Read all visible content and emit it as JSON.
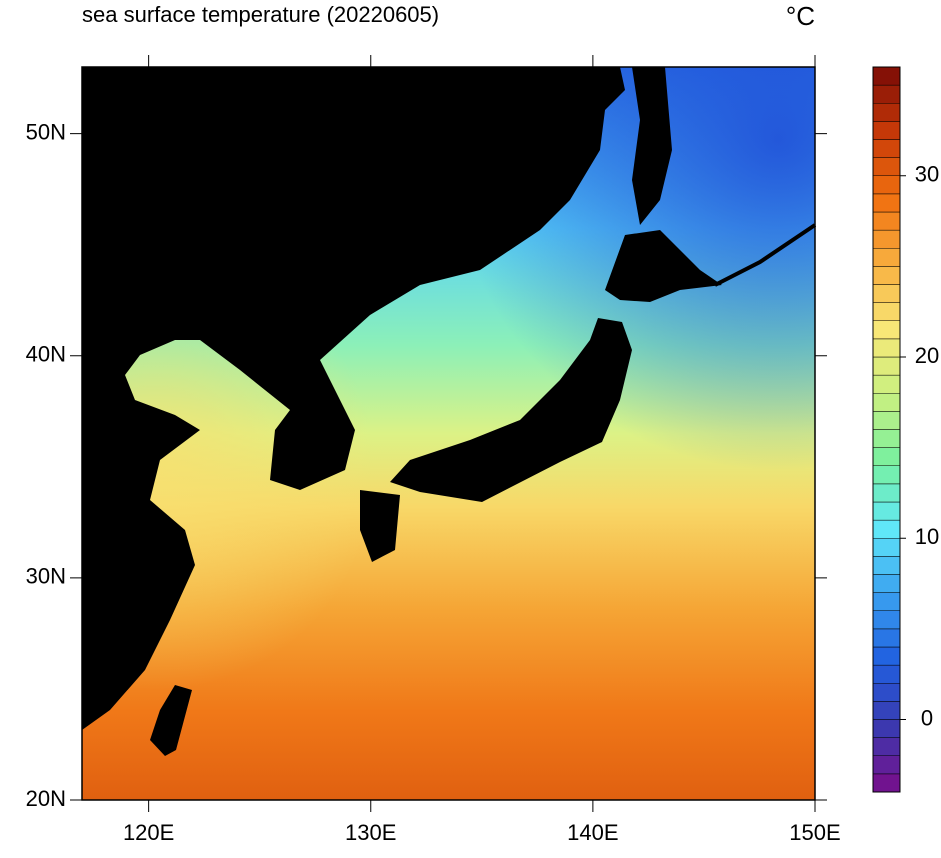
{
  "chart_data": {
    "type": "map",
    "title": "sea surface temperature (20220605)",
    "unit": "°C",
    "xlim": [
      117,
      150
    ],
    "ylim": [
      20,
      53
    ],
    "xticks": [
      {
        "value": 120,
        "label": "120E"
      },
      {
        "value": 130,
        "label": "130E"
      },
      {
        "value": 140,
        "label": "140E"
      },
      {
        "value": 150,
        "label": "150E"
      }
    ],
    "yticks": [
      {
        "value": 20,
        "label": "20N"
      },
      {
        "value": 30,
        "label": "30N"
      },
      {
        "value": 40,
        "label": "40N"
      },
      {
        "value": 50,
        "label": "50N"
      }
    ],
    "colorbar": {
      "lim": [
        -4,
        36
      ],
      "step": 1,
      "ticks": [
        0,
        10,
        20,
        30
      ],
      "palette": [
        "#7a0d8a",
        "#3a3ab0",
        "#2060e0",
        "#3aa0f0",
        "#60e8f8",
        "#78f0a0",
        "#c8f080",
        "#f8e878",
        "#f8b040",
        "#f07010",
        "#c83a08",
        "#7a0a06"
      ]
    }
  }
}
